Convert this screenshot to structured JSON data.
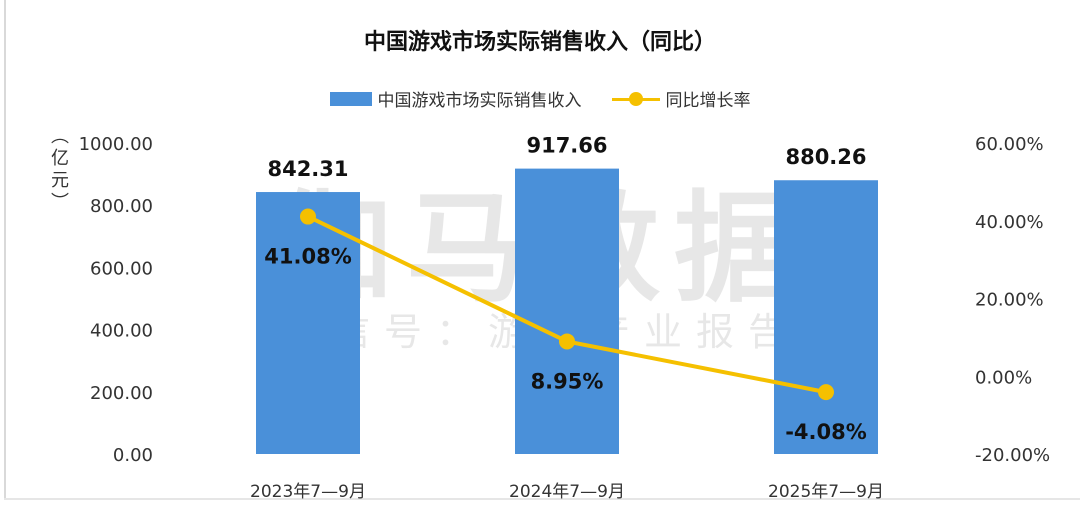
{
  "watermark": {
    "main": "伽马数据",
    "sub": "微信号：游戏产业报告"
  },
  "colors": {
    "bar": "#4A90D9",
    "line": "#F5C000"
  },
  "chart_data": {
    "type": "bar+line",
    "title": "中国游戏市场实际销售收入（同比）",
    "ylabel": "（亿元）",
    "legend_position": "top",
    "grid": false,
    "categories": [
      "2023年7—9月",
      "2024年7—9月",
      "2025年7—9月"
    ],
    "series": [
      {
        "name": "中国游戏市场实际销售收入",
        "type": "bar",
        "axis": "left",
        "values": [
          842.31,
          917.66,
          880.26
        ],
        "labels": [
          "842.31",
          "917.66",
          "880.26"
        ]
      },
      {
        "name": "同比增长率",
        "type": "line",
        "axis": "right",
        "values": [
          41.08,
          8.95,
          -4.08
        ],
        "labels": [
          "41.08%",
          "8.95%",
          "-4.08%"
        ]
      }
    ],
    "ylim_left": [
      0,
      1000
    ],
    "yticks_left": [
      "0.00",
      "200.00",
      "400.00",
      "600.00",
      "800.00",
      "1000.00"
    ],
    "ylim_right": [
      -20,
      60
    ],
    "yticks_right": [
      "-20.00%",
      "0.00%",
      "20.00%",
      "40.00%",
      "60.00%"
    ]
  }
}
